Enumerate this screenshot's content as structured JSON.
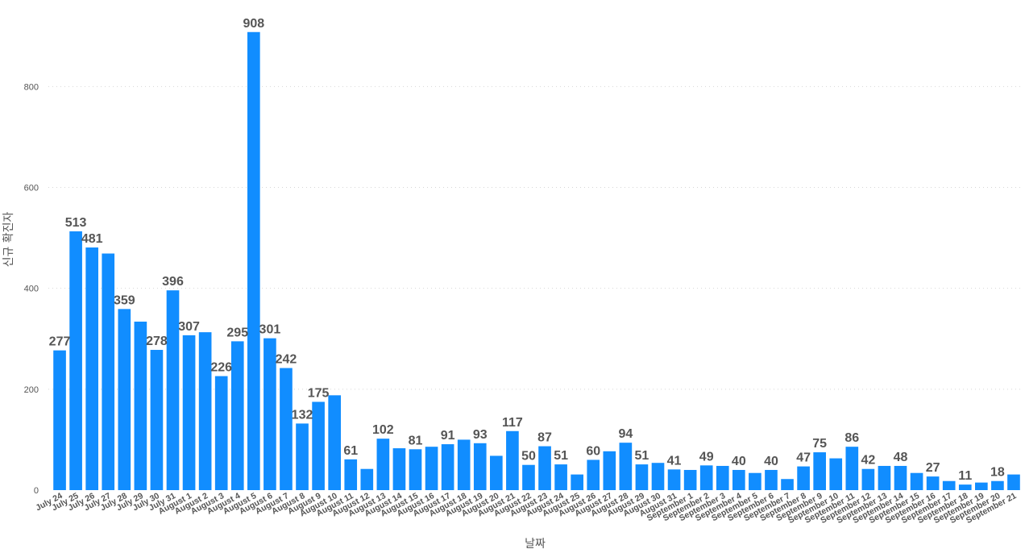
{
  "chart_data": {
    "type": "bar",
    "xlabel": "날짜",
    "ylabel": "신규 확진자",
    "ylim": [
      0,
      930
    ],
    "yticks": [
      0,
      200,
      400,
      600,
      800
    ],
    "grid": "horizontal dotted",
    "bar_color": "#118dff",
    "label_color": "#555555",
    "categories": [
      "July 24",
      "July 25",
      "July 26",
      "July 27",
      "July 28",
      "July 29",
      "July 30",
      "July 31",
      "August 1",
      "August 2",
      "August 3",
      "August 4",
      "August 5",
      "August 6",
      "August 7",
      "August 8",
      "August 9",
      "August 10",
      "August 11",
      "August 12",
      "August 13",
      "August 14",
      "August 15",
      "August 16",
      "August 17",
      "August 18",
      "August 19",
      "August 20",
      "August 21",
      "August 22",
      "August 23",
      "August 24",
      "August 25",
      "August 26",
      "August 27",
      "August 28",
      "August 29",
      "August 30",
      "August 31",
      "September 1",
      "September 2",
      "September 3",
      "September 4",
      "September 5",
      "September 6",
      "September 7",
      "September 8",
      "September 9",
      "September 10",
      "September 11",
      "September 12",
      "September 13",
      "September 14",
      "September 15",
      "September 16",
      "September 17",
      "September 18",
      "September 19",
      "September 20",
      "September 21"
    ],
    "values": [
      277,
      513,
      481,
      469,
      359,
      334,
      278,
      396,
      307,
      313,
      226,
      295,
      908,
      301,
      242,
      132,
      175,
      188,
      61,
      42,
      102,
      83,
      81,
      86,
      91,
      100,
      93,
      68,
      117,
      50,
      87,
      51,
      31,
      60,
      77,
      94,
      51,
      54,
      41,
      40,
      49,
      48,
      40,
      34,
      40,
      22,
      47,
      75,
      63,
      86,
      42,
      48,
      48,
      34,
      27,
      18,
      11,
      15,
      18,
      31
    ],
    "data_labels": [
      "277",
      "513",
      "481",
      "",
      "359",
      "",
      "278",
      "396",
      "307",
      "",
      "226",
      "295",
      "908",
      "301",
      "242",
      "132",
      "175",
      "",
      "61",
      "",
      "102",
      "",
      "81",
      "",
      "91",
      "",
      "93",
      "",
      "117",
      "50",
      "87",
      "51",
      "",
      "60",
      "",
      "94",
      "51",
      "",
      "41",
      "",
      "49",
      "",
      "40",
      "",
      "40",
      "",
      "47",
      "75",
      "",
      "86",
      "42",
      "",
      "48",
      "",
      "27",
      "",
      "11",
      "",
      "18",
      ""
    ]
  }
}
